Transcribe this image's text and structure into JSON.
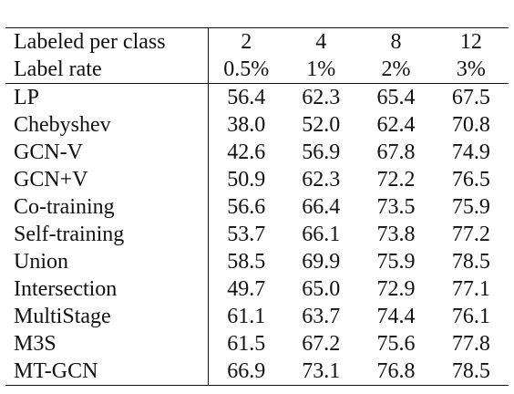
{
  "header_rows": [
    {
      "label": "Labeled per class",
      "values": [
        "2",
        "4",
        "8",
        "12"
      ]
    },
    {
      "label": "Label rate",
      "values": [
        "0.5%",
        "1%",
        "2%",
        "3%"
      ]
    }
  ],
  "rows": [
    {
      "method": "LP",
      "values": [
        "56.4",
        "62.3",
        "65.4",
        "67.5"
      ]
    },
    {
      "method": "Chebyshev",
      "values": [
        "38.0",
        "52.0",
        "62.4",
        "70.8"
      ]
    },
    {
      "method": "GCN-V",
      "values": [
        "42.6",
        "56.9",
        "67.8",
        "74.9"
      ]
    },
    {
      "method": "GCN+V",
      "values": [
        "50.9",
        "62.3",
        "72.2",
        "76.5"
      ]
    },
    {
      "method": "Co-training",
      "values": [
        "56.6",
        "66.4",
        "73.5",
        "75.9"
      ]
    },
    {
      "method": "Self-training",
      "values": [
        "53.7",
        "66.1",
        "73.8",
        "77.2"
      ]
    },
    {
      "method": "Union",
      "values": [
        "58.5",
        "69.9",
        "75.9",
        "78.5"
      ]
    },
    {
      "method": "Intersection",
      "values": [
        "49.7",
        "65.0",
        "72.9",
        "77.1"
      ]
    },
    {
      "method": "MultiStage",
      "values": [
        "61.1",
        "63.7",
        "74.4",
        "76.1"
      ]
    },
    {
      "method": "M3S",
      "values": [
        "61.5",
        "67.2",
        "75.6",
        "77.8"
      ]
    },
    {
      "method": "MT-GCN",
      "values": [
        "66.9",
        "73.1",
        "76.8",
        "78.5"
      ],
      "bold": true
    }
  ]
}
